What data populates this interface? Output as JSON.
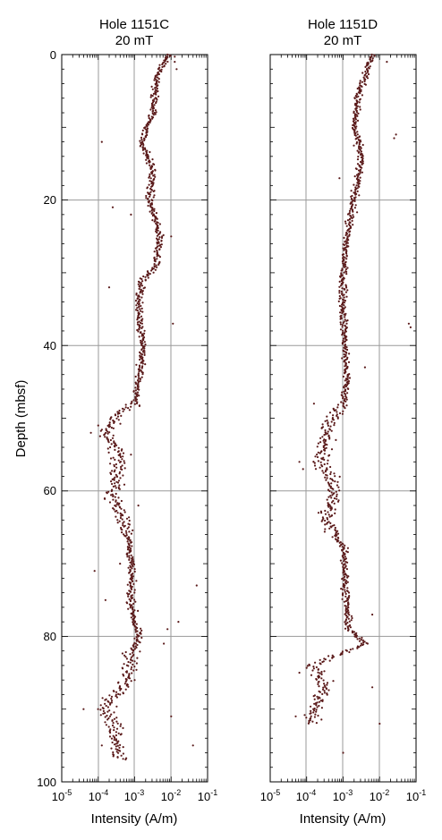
{
  "figure": {
    "ylabel": "Depth (mbsf)",
    "xlabel": "Intensity (A/m)"
  },
  "chart_data": [
    {
      "type": "scatter",
      "title_line1": "Hole 1151C",
      "title_line2": "20 mT",
      "xlabel": "Intensity (A/m)",
      "ylabel": "Depth (mbsf)",
      "xscale": "log",
      "xlim": [
        1e-05,
        0.1
      ],
      "ylim": [
        100,
        0
      ],
      "x_tick_labels": [
        {
          "base": "10",
          "exp": "-5"
        },
        {
          "base": "10",
          "exp": "-4"
        },
        {
          "base": "10",
          "exp": "-3"
        },
        {
          "base": "10",
          "exp": "-2"
        },
        {
          "base": "10",
          "exp": "-1"
        }
      ],
      "y_ticks": [
        0,
        20,
        40,
        60,
        80,
        100
      ],
      "grid": true,
      "point_color": "#5a1a1a",
      "trend": [
        [
          0,
          -2.05
        ],
        [
          3,
          -2.4
        ],
        [
          8,
          -2.5
        ],
        [
          12,
          -2.8
        ],
        [
          16,
          -2.5
        ],
        [
          20,
          -2.6
        ],
        [
          25,
          -2.3
        ],
        [
          29,
          -2.4
        ],
        [
          31,
          -2.8
        ],
        [
          35,
          -2.9
        ],
        [
          40,
          -2.75
        ],
        [
          45,
          -2.9
        ],
        [
          48,
          -3.0
        ],
        [
          50,
          -3.6
        ],
        [
          52,
          -3.8
        ],
        [
          55,
          -3.4
        ],
        [
          58,
          -3.5
        ],
        [
          61,
          -3.6
        ],
        [
          65,
          -3.2
        ],
        [
          70,
          -3.1
        ],
        [
          75,
          -3.1
        ],
        [
          78,
          -3.0
        ],
        [
          80,
          -2.9
        ],
        [
          83,
          -3.1
        ],
        [
          87,
          -3.3
        ],
        [
          90,
          -3.8
        ],
        [
          93,
          -3.5
        ],
        [
          97,
          -3.4
        ]
      ],
      "outliers": [
        [
          0.3,
          -1.9
        ],
        [
          1,
          -1.9
        ],
        [
          2,
          -1.85
        ],
        [
          12,
          -3.9
        ],
        [
          21,
          -3.6
        ],
        [
          22,
          -3.1
        ],
        [
          25,
          -2.0
        ],
        [
          32,
          -3.7
        ],
        [
          37,
          -1.95
        ],
        [
          48,
          -3.1
        ],
        [
          51,
          -4.0
        ],
        [
          52,
          -4.2
        ],
        [
          55,
          -3.1
        ],
        [
          62,
          -2.9
        ],
        [
          70,
          -3.4
        ],
        [
          71,
          -4.1
        ],
        [
          73,
          -1.3
        ],
        [
          75,
          -3.8
        ],
        [
          78,
          -1.8
        ],
        [
          79,
          -2.1
        ],
        [
          81,
          -2.2
        ],
        [
          86,
          -3.0
        ],
        [
          88,
          -3.4
        ],
        [
          90,
          -4.4
        ],
        [
          91,
          -2.0
        ],
        [
          95,
          -1.4
        ],
        [
          95,
          -3.9
        ]
      ]
    },
    {
      "type": "scatter",
      "title_line1": "Hole 1151D",
      "title_line2": "20 mT",
      "xlabel": "Intensity (A/m)",
      "ylabel": "",
      "xscale": "log",
      "xlim": [
        1e-05,
        0.1
      ],
      "ylim": [
        100,
        0
      ],
      "x_tick_labels": [
        {
          "base": "10",
          "exp": "-5"
        },
        {
          "base": "10",
          "exp": "-4"
        },
        {
          "base": "10",
          "exp": "-3"
        },
        {
          "base": "10",
          "exp": "-2"
        },
        {
          "base": "10",
          "exp": "-1"
        }
      ],
      "y_ticks": [
        0,
        20,
        40,
        60,
        80,
        100
      ],
      "grid": true,
      "point_color": "#5a1a1a",
      "trend": [
        [
          0,
          -2.2
        ],
        [
          3,
          -2.4
        ],
        [
          6,
          -2.6
        ],
        [
          10,
          -2.7
        ],
        [
          14,
          -2.5
        ],
        [
          17,
          -2.6
        ],
        [
          20,
          -2.7
        ],
        [
          25,
          -2.9
        ],
        [
          30,
          -3.0
        ],
        [
          35,
          -3.0
        ],
        [
          40,
          -2.95
        ],
        [
          45,
          -2.9
        ],
        [
          48,
          -3.0
        ],
        [
          52,
          -3.5
        ],
        [
          56,
          -3.6
        ],
        [
          60,
          -3.2
        ],
        [
          64,
          -3.5
        ],
        [
          68,
          -2.95
        ],
        [
          72,
          -2.95
        ],
        [
          76,
          -2.9
        ],
        [
          79,
          -2.85
        ],
        [
          81,
          -2.4
        ],
        [
          84,
          -3.8
        ],
        [
          87,
          -3.5
        ],
        [
          90,
          -3.8
        ],
        [
          92,
          -3.9
        ]
      ],
      "outliers": [
        [
          1,
          -1.8
        ],
        [
          11,
          -1.55
        ],
        [
          11.5,
          -1.6
        ],
        [
          17,
          -3.1
        ],
        [
          37,
          -1.2
        ],
        [
          37.5,
          -1.15
        ],
        [
          43,
          -2.4
        ],
        [
          48,
          -3.8
        ],
        [
          53,
          -3.2
        ],
        [
          56,
          -4.2
        ],
        [
          57,
          -4.1
        ],
        [
          63,
          -3.6
        ],
        [
          77,
          -2.2
        ],
        [
          81,
          -2.5
        ],
        [
          85,
          -4.2
        ],
        [
          87,
          -2.2
        ],
        [
          91,
          -4.3
        ],
        [
          92,
          -2.0
        ],
        [
          96,
          -3.0
        ]
      ]
    }
  ]
}
